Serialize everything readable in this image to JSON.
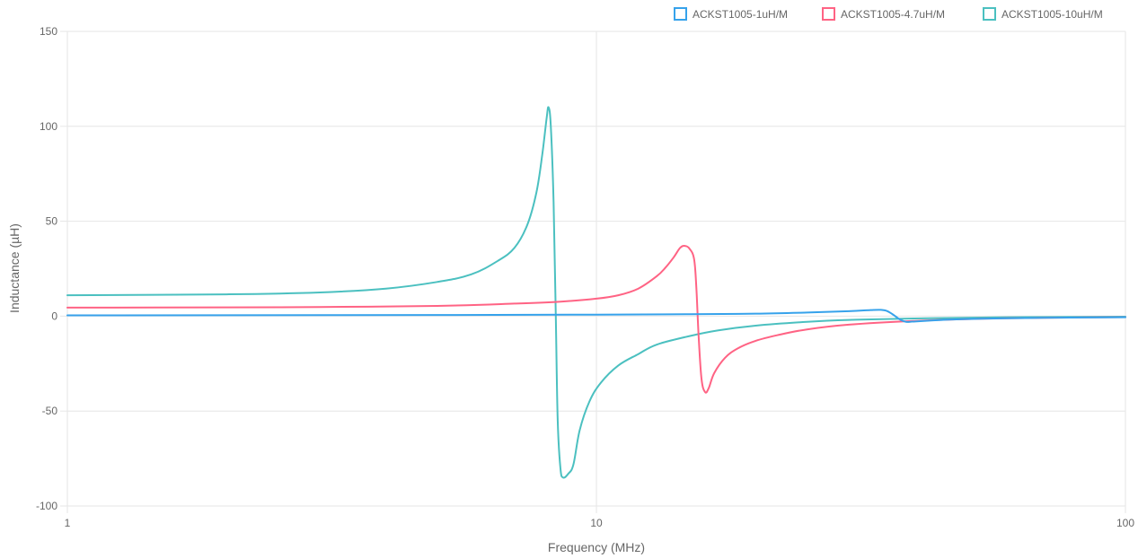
{
  "chart_data": {
    "type": "line",
    "title": "",
    "xlabel": "Frequency (MHz)",
    "ylabel": "Inductance (µH)",
    "x_scale": "log",
    "xlim": [
      1,
      100
    ],
    "ylim": [
      -100,
      150
    ],
    "x_ticks": [
      1,
      10,
      100
    ],
    "y_ticks": [
      150,
      100,
      50,
      0,
      -50,
      -100
    ],
    "grid": true,
    "legend_position": "top-right",
    "series": [
      {
        "name": "ACKST1005-1uH/M",
        "color": "#36a2eb",
        "points": [
          [
            1,
            0.4
          ],
          [
            2,
            0.5
          ],
          [
            5,
            0.6
          ],
          [
            10,
            0.8
          ],
          [
            15,
            1.0
          ],
          [
            20,
            1.3
          ],
          [
            25,
            1.9
          ],
          [
            30,
            2.6
          ],
          [
            33,
            3.2
          ],
          [
            34.5,
            3.3
          ],
          [
            35.5,
            2.6
          ],
          [
            36.5,
            0.5
          ],
          [
            37.5,
            -1.8
          ],
          [
            38.5,
            -3.0
          ],
          [
            40,
            -2.8
          ],
          [
            45,
            -2.0
          ],
          [
            50,
            -1.5
          ],
          [
            60,
            -1.1
          ],
          [
            70,
            -0.9
          ],
          [
            85,
            -0.7
          ],
          [
            100,
            -0.6
          ]
        ]
      },
      {
        "name": "ACKST1005-4.7uH/M",
        "color": "#ff6384",
        "points": [
          [
            1,
            4.5
          ],
          [
            2,
            4.6
          ],
          [
            3,
            4.8
          ],
          [
            5,
            5.4
          ],
          [
            7,
            6.6
          ],
          [
            8.5,
            7.6
          ],
          [
            10,
            9.2
          ],
          [
            11,
            11.0
          ],
          [
            12,
            14.5
          ],
          [
            13,
            21.0
          ],
          [
            13.5,
            25.5
          ],
          [
            14,
            31.0
          ],
          [
            14.4,
            36.0
          ],
          [
            14.7,
            37.0
          ],
          [
            15.0,
            35.5
          ],
          [
            15.3,
            30.0
          ],
          [
            15.45,
            15.0
          ],
          [
            15.6,
            -10.0
          ],
          [
            15.8,
            -33.0
          ],
          [
            16.05,
            -40.0
          ],
          [
            16.3,
            -38.0
          ],
          [
            16.7,
            -30.0
          ],
          [
            17.5,
            -22.0
          ],
          [
            18.5,
            -17.0
          ],
          [
            20,
            -13.0
          ],
          [
            22,
            -10.0
          ],
          [
            25,
            -7.0
          ],
          [
            30,
            -4.5
          ],
          [
            40,
            -2.5
          ],
          [
            55,
            -1.3
          ],
          [
            70,
            -0.9
          ],
          [
            100,
            -0.5
          ]
        ]
      },
      {
        "name": "ACKST1005-10uH/M",
        "color": "#4bc0c0",
        "points": [
          [
            1,
            11.0
          ],
          [
            2,
            11.5
          ],
          [
            3,
            12.5
          ],
          [
            4,
            14.5
          ],
          [
            5,
            18.0
          ],
          [
            5.8,
            22.0
          ],
          [
            6.5,
            29.0
          ],
          [
            7,
            36.0
          ],
          [
            7.4,
            48.0
          ],
          [
            7.7,
            65.0
          ],
          [
            7.9,
            85.0
          ],
          [
            8.05,
            104.0
          ],
          [
            8.12,
            110.0
          ],
          [
            8.2,
            100.0
          ],
          [
            8.3,
            60.0
          ],
          [
            8.38,
            0.0
          ],
          [
            8.45,
            -55.0
          ],
          [
            8.55,
            -80.0
          ],
          [
            8.65,
            -85.0
          ],
          [
            8.85,
            -83.0
          ],
          [
            9.05,
            -78.0
          ],
          [
            9.3,
            -60.0
          ],
          [
            9.7,
            -45.0
          ],
          [
            10.2,
            -35.0
          ],
          [
            11,
            -26.0
          ],
          [
            12,
            -20.0
          ],
          [
            13,
            -15.0
          ],
          [
            15,
            -10.5
          ],
          [
            17,
            -7.5
          ],
          [
            20,
            -5.0
          ],
          [
            25,
            -3.0
          ],
          [
            30,
            -2.0
          ],
          [
            40,
            -1.2
          ],
          [
            60,
            -0.6
          ],
          [
            100,
            -0.3
          ]
        ]
      }
    ]
  }
}
